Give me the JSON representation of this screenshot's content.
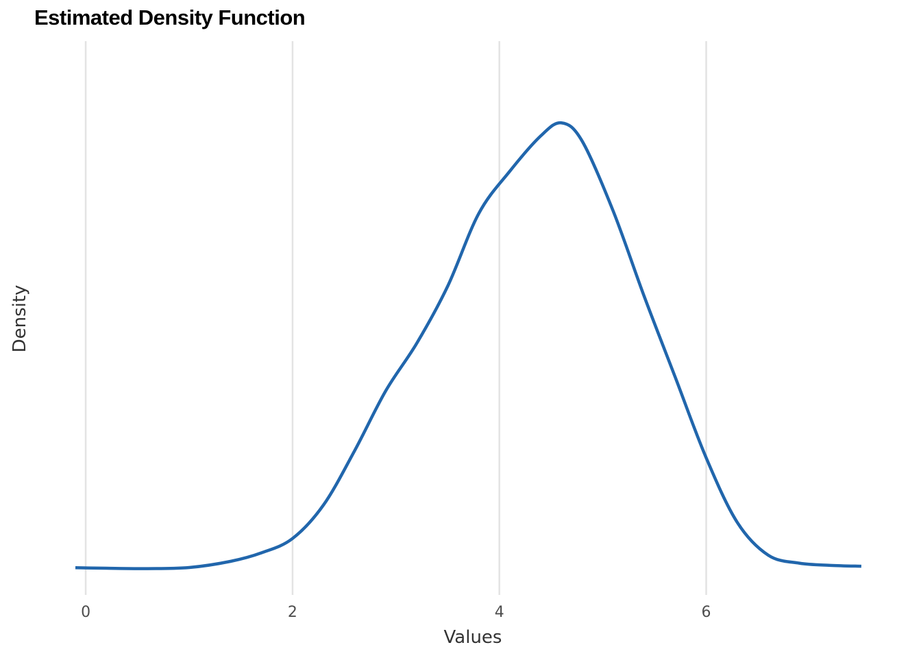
{
  "chart_data": {
    "type": "line",
    "title": "Estimated Density Function",
    "xlabel": "Values",
    "ylabel": "Density",
    "xlim": [
      -0.1,
      7.6
    ],
    "ylim": [
      0,
      0.305
    ],
    "x_ticks": [
      0,
      2,
      4,
      6
    ],
    "x_tick_labels": [
      "0",
      "2",
      "4",
      "6"
    ],
    "grid": "vertical-major",
    "series": [
      {
        "color": "#2166ac",
        "x": [
          -0.1,
          0.2,
          0.6,
          1.0,
          1.4,
          1.7,
          2.0,
          2.3,
          2.6,
          2.9,
          3.2,
          3.5,
          3.8,
          4.1,
          4.4,
          4.6,
          4.8,
          5.1,
          5.4,
          5.7,
          6.0,
          6.3,
          6.6,
          6.9,
          7.2,
          7.5
        ],
        "y": [
          0.015,
          0.0147,
          0.0145,
          0.0151,
          0.0185,
          0.0232,
          0.0311,
          0.0496,
          0.0794,
          0.1123,
          0.1385,
          0.17,
          0.21,
          0.2333,
          0.2528,
          0.26,
          0.25,
          0.2115,
          0.1645,
          0.12,
          0.0755,
          0.04,
          0.0219,
          0.0175,
          0.0163,
          0.0158
        ]
      }
    ]
  }
}
